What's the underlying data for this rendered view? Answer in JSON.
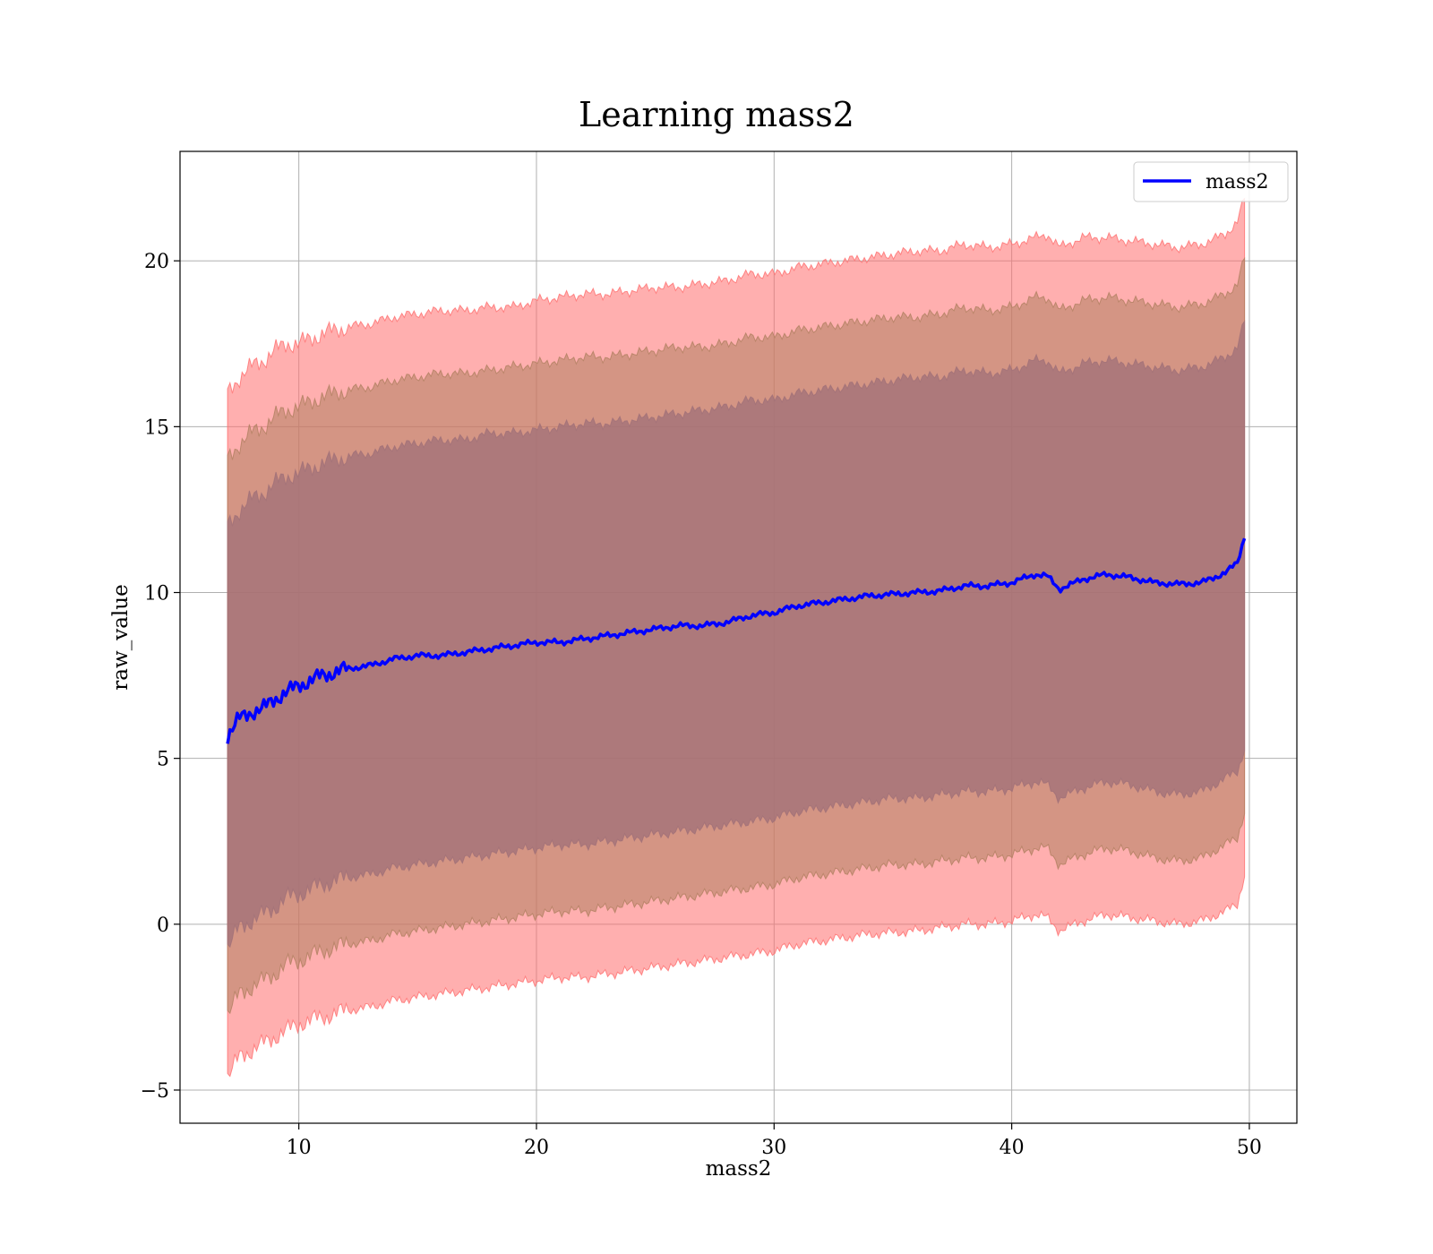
{
  "chart_data": {
    "type": "area",
    "title": "Learning mass2",
    "xlabel": "mass2",
    "ylabel": "raw_value",
    "xlim": [
      5,
      52
    ],
    "ylim": [
      -6,
      23.3
    ],
    "xticks": [
      10,
      20,
      30,
      40,
      50
    ],
    "yticks": [
      -5,
      0,
      5,
      10,
      15,
      20
    ],
    "grid": true,
    "legend_position": "top-right",
    "colors": {
      "mean": "#0000ff",
      "band_3sigma": "#ff6e6e",
      "band_2sigma": "#b08060",
      "band_1sigma": "#a07078"
    },
    "series": [
      {
        "name": "mass2",
        "x": [
          7,
          7.5,
          8,
          8.5,
          9,
          9.5,
          10,
          11,
          12,
          13,
          14,
          15,
          16,
          17,
          18,
          19,
          20,
          21,
          22,
          23,
          24,
          25,
          26,
          27,
          28,
          29,
          30,
          31,
          32,
          33,
          34,
          35,
          36,
          37,
          38,
          39,
          40,
          41,
          41.5,
          42,
          43,
          44,
          45,
          46,
          47,
          48,
          49,
          49.5,
          49.8
        ],
        "y": [
          5.7,
          6.2,
          6.4,
          6.5,
          6.8,
          7.0,
          7.2,
          7.5,
          7.7,
          7.8,
          8.0,
          8.1,
          8.1,
          8.2,
          8.3,
          8.4,
          8.5,
          8.5,
          8.6,
          8.7,
          8.8,
          8.9,
          9.0,
          9.0,
          9.1,
          9.3,
          9.4,
          9.6,
          9.7,
          9.8,
          9.9,
          9.95,
          10.0,
          10.05,
          10.2,
          10.2,
          10.3,
          10.55,
          10.5,
          10.1,
          10.4,
          10.55,
          10.45,
          10.3,
          10.25,
          10.3,
          10.6,
          10.9,
          11.7
        ]
      }
    ],
    "bands": [
      {
        "level": "3sigma",
        "upper": [
          16.0,
          16.5,
          16.8,
          17.0,
          17.3,
          17.5,
          17.5,
          17.8,
          18.0,
          18.1,
          18.3,
          18.4,
          18.5,
          18.5,
          18.6,
          18.6,
          18.8,
          18.9,
          19.0,
          19.0,
          19.1,
          19.2,
          19.2,
          19.3,
          19.4,
          19.6,
          19.6,
          19.8,
          19.9,
          20.0,
          20.1,
          20.2,
          20.3,
          20.3,
          20.5,
          20.4,
          20.5,
          20.7,
          20.8,
          20.4,
          20.7,
          20.7,
          20.6,
          20.5,
          20.4,
          20.5,
          20.8,
          21.2,
          21.9
        ],
        "lower": [
          -4.6,
          -4.0,
          -3.8,
          -3.6,
          -3.4,
          -3.2,
          -3.0,
          -2.8,
          -2.6,
          -2.5,
          -2.3,
          -2.2,
          -2.1,
          -2.0,
          -1.9,
          -1.8,
          -1.7,
          -1.6,
          -1.6,
          -1.5,
          -1.4,
          -1.3,
          -1.2,
          -1.1,
          -1.0,
          -0.9,
          -0.8,
          -0.6,
          -0.5,
          -0.4,
          -0.3,
          -0.25,
          -0.2,
          -0.1,
          0.0,
          0.0,
          0.1,
          0.3,
          0.2,
          -0.2,
          0.1,
          0.3,
          0.2,
          0.1,
          0.0,
          0.1,
          0.4,
          0.6,
          1.5
        ]
      },
      {
        "level": "2sigma",
        "upper": [
          14.0,
          14.5,
          14.8,
          15.0,
          15.3,
          15.5,
          15.6,
          15.9,
          16.1,
          16.2,
          16.4,
          16.5,
          16.6,
          16.6,
          16.7,
          16.8,
          16.9,
          17.0,
          17.1,
          17.1,
          17.2,
          17.3,
          17.4,
          17.4,
          17.5,
          17.7,
          17.7,
          17.9,
          18.0,
          18.1,
          18.2,
          18.3,
          18.3,
          18.4,
          18.6,
          18.5,
          18.6,
          18.9,
          18.9,
          18.5,
          18.8,
          18.9,
          18.8,
          18.7,
          18.6,
          18.7,
          19.0,
          19.3,
          20.1
        ],
        "lower": [
          -2.7,
          -2.1,
          -1.9,
          -1.7,
          -1.5,
          -1.2,
          -1.1,
          -0.8,
          -0.6,
          -0.5,
          -0.3,
          -0.2,
          -0.1,
          0.0,
          0.1,
          0.2,
          0.3,
          0.4,
          0.4,
          0.5,
          0.6,
          0.7,
          0.8,
          0.9,
          1.0,
          1.1,
          1.2,
          1.4,
          1.5,
          1.6,
          1.7,
          1.8,
          1.8,
          1.9,
          2.0,
          2.0,
          2.1,
          2.3,
          2.3,
          1.8,
          2.1,
          2.3,
          2.2,
          2.0,
          1.9,
          2.0,
          2.4,
          2.6,
          3.4
        ]
      },
      {
        "level": "1sigma",
        "upper": [
          12.0,
          12.5,
          12.8,
          13.0,
          13.3,
          13.5,
          13.6,
          13.9,
          14.1,
          14.2,
          14.4,
          14.5,
          14.6,
          14.6,
          14.8,
          14.8,
          14.9,
          15.0,
          15.1,
          15.1,
          15.2,
          15.3,
          15.4,
          15.5,
          15.6,
          15.8,
          15.8,
          16.0,
          16.1,
          16.2,
          16.3,
          16.4,
          16.5,
          16.5,
          16.7,
          16.6,
          16.7,
          17.0,
          17.0,
          16.6,
          16.9,
          17.0,
          16.9,
          16.8,
          16.7,
          16.8,
          17.1,
          17.4,
          18.2
        ],
        "lower": [
          -0.7,
          -0.1,
          0.1,
          0.3,
          0.5,
          0.8,
          0.9,
          1.2,
          1.4,
          1.5,
          1.7,
          1.8,
          1.9,
          2.0,
          2.1,
          2.2,
          2.3,
          2.4,
          2.4,
          2.5,
          2.6,
          2.7,
          2.8,
          2.9,
          3.0,
          3.1,
          3.2,
          3.4,
          3.5,
          3.6,
          3.7,
          3.8,
          3.8,
          3.9,
          4.0,
          4.0,
          4.1,
          4.3,
          4.2,
          3.8,
          4.1,
          4.3,
          4.2,
          4.0,
          3.9,
          4.0,
          4.4,
          4.6,
          5.3
        ]
      }
    ]
  }
}
